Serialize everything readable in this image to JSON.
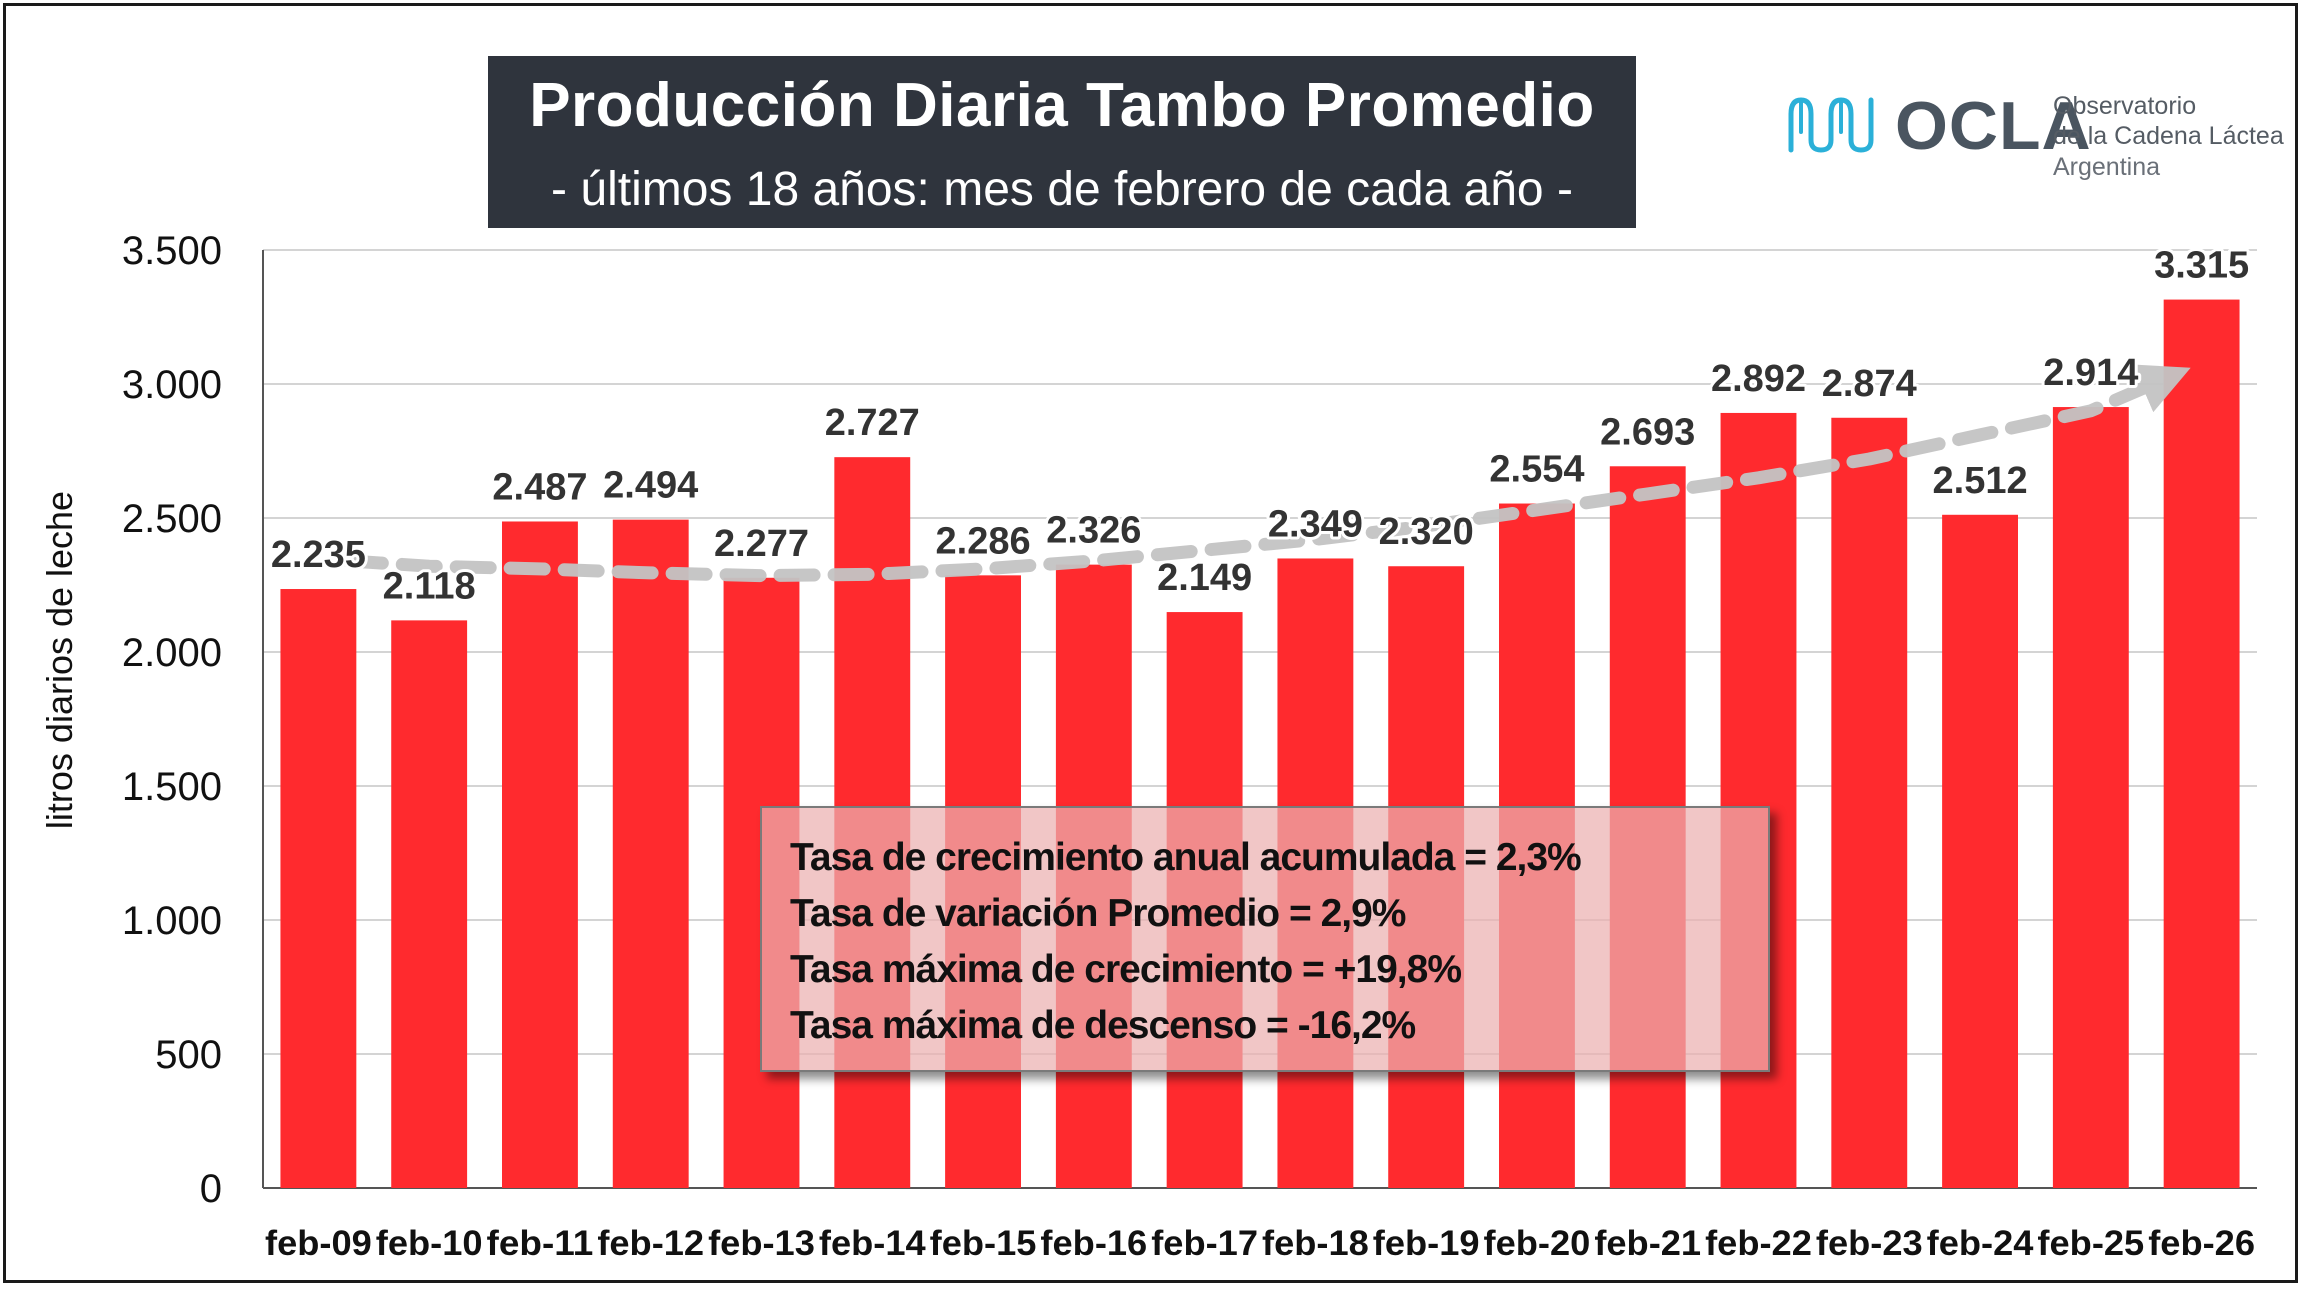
{
  "chart_data": {
    "type": "bar",
    "title": "Producción Diaria Tambo Promedio",
    "subtitle": "- últimos 18 años: mes de febrero de cada año -",
    "xlabel": "",
    "ylabel": "litros diarios de leche",
    "ylim": [
      0,
      3500
    ],
    "yticks": [
      0,
      500,
      1000,
      1500,
      2000,
      2500,
      3000,
      3500
    ],
    "ytick_labels": [
      "0",
      "500",
      "1.000",
      "1.500",
      "2.000",
      "2.500",
      "3.000",
      "3.500"
    ],
    "grid": true,
    "categories": [
      "feb-09",
      "feb-10",
      "feb-11",
      "feb-12",
      "feb-13",
      "feb-14",
      "feb-15",
      "feb-16",
      "feb-17",
      "feb-18",
      "feb-19",
      "feb-20",
      "feb-21",
      "feb-22",
      "feb-23",
      "feb-24",
      "feb-25",
      "feb-26"
    ],
    "values": [
      2235,
      2118,
      2487,
      2494,
      2277,
      2727,
      2286,
      2326,
      2149,
      2349,
      2320,
      2554,
      2693,
      2892,
      2874,
      2512,
      2914,
      3315
    ],
    "value_labels": [
      "2.235",
      "2.118",
      "2.487",
      "2.494",
      "2.277",
      "2.727",
      "2.286",
      "2.326",
      "2.149",
      "2.349",
      "2.320",
      "2.554",
      "2.693",
      "2.892",
      "2.874",
      "2.512",
      "2.914",
      "3.315"
    ],
    "trend_line": {
      "style": "dashed-arrow",
      "values": [
        2340,
        2320,
        2310,
        2295,
        2285,
        2290,
        2310,
        2340,
        2380,
        2420,
        2470,
        2530,
        2590,
        2650,
        2720,
        2810,
        2900,
        3030
      ]
    },
    "colors": {
      "bar": "#ff2a2e",
      "trend": "#c4c4c4",
      "grid": "#d4d4d4",
      "axis": "#555555",
      "title_bg": "#2f343d"
    }
  },
  "logo": {
    "name": "OCLA",
    "line1": "Observatorio",
    "line2": "de la Cadena Láctea",
    "line3": "Argentina",
    "accent_color": "#2bb0d8"
  },
  "stats": {
    "line1": "Tasa de crecimiento anual acumulada = 2,3%",
    "line2": "Tasa de variación  Promedio = 2,9%",
    "line3": "Tasa máxima de crecimiento = +19,8%",
    "line4": "Tasa máxima de descenso = -16,2%"
  }
}
